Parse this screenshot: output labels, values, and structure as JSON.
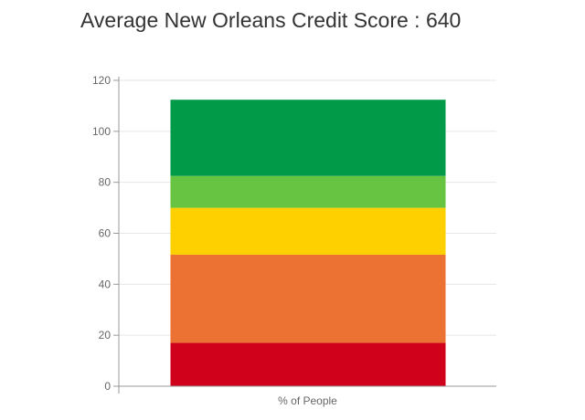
{
  "chart_data": {
    "type": "bar",
    "stacked": true,
    "title": "Average New Orleans Credit Score : 640",
    "categories": [
      "% of People"
    ],
    "series": [
      {
        "values": [
          17.0
        ],
        "color": "#d0021b"
      },
      {
        "values": [
          34.6
        ],
        "color": "#eb7233"
      },
      {
        "values": [
          18.4
        ],
        "color": "#ffd000"
      },
      {
        "values": [
          12.5
        ],
        "color": "#67c443"
      },
      {
        "values": [
          29.9
        ],
        "color": "#009a48"
      }
    ],
    "xlabel": "",
    "ylabel": "",
    "ylim": [
      0,
      120
    ],
    "yticks": [
      "0",
      "20",
      "40",
      "60",
      "80",
      "100",
      "120"
    ],
    "grid": true,
    "legend": "none"
  }
}
